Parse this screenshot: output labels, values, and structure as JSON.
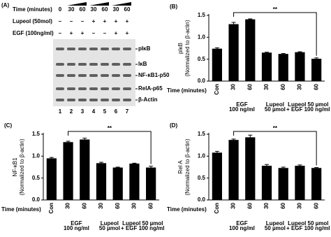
{
  "panel_a": {
    "label": "(A)",
    "rows": [
      {
        "name": "Time (minutes)",
        "values": [
          "0",
          "30",
          "60",
          "30",
          "60",
          "30",
          "60"
        ]
      },
      {
        "name": "Lupeol (50mol)",
        "values": [
          "–",
          "–",
          "–",
          "+",
          "+",
          "+",
          "+"
        ]
      },
      {
        "name": "EGF (100ng/ml)",
        "values": [
          "–",
          "+",
          "+",
          "–",
          "–",
          "+",
          "+"
        ]
      }
    ],
    "bands": [
      "pIκB",
      "IκB",
      "NF-κB1-p50",
      "RelA-p65",
      "β-Actin"
    ],
    "lanes": [
      1,
      2,
      3,
      4,
      5,
      6,
      7
    ]
  },
  "chart_data": [
    {
      "type": "bar",
      "panel_label": "(B)",
      "ylabel": "pIκB",
      "ylabel_note": "(Normalized to β-actin)",
      "xlabel": "Time (minutes)",
      "categories": [
        "Con",
        "30",
        "60",
        "30",
        "60",
        "30",
        "60"
      ],
      "group_labels": [
        [
          "EGF",
          "100 ng/ml"
        ],
        [
          "Lupeol",
          "50 µmol"
        ],
        [
          "Lupeol 50 µmol",
          "+ EGF 100 ng/ml"
        ]
      ],
      "values": [
        0.74,
        1.3,
        1.41,
        0.65,
        0.62,
        0.66,
        0.51
      ],
      "errors": [
        0.02,
        0.04,
        0.01,
        0.01,
        0.01,
        0.01,
        0.02
      ],
      "color": "#000000",
      "ylim": [
        0,
        1.5
      ],
      "yticks": [
        {
          "value": 0,
          "label": "0.0"
        },
        0.5,
        {
          "value": 1,
          "label": "1.0"
        },
        1.5
      ],
      "annotation": "**"
    },
    {
      "type": "bar",
      "panel_label": "(C)",
      "ylabel": "NF-κB1",
      "ylabel_note": "(Normalized to β-actin)",
      "xlabel": "Time (minutes)",
      "categories": [
        "Con",
        "30",
        "60",
        "30",
        "60",
        "30",
        "60"
      ],
      "group_labels": [
        [
          "EGF",
          "100 ng/ml"
        ],
        [
          "Lupeol",
          "50 µmol"
        ],
        [
          "Lupeol 50 µmol",
          "+ EGF 100 ng/ml"
        ]
      ],
      "values": [
        0.95,
        1.32,
        1.38,
        0.84,
        0.74,
        0.83,
        0.74
      ],
      "errors": [
        0.02,
        0.02,
        0.03,
        0.02,
        0.01,
        0.01,
        0.03
      ],
      "color": "#000000",
      "ylim": [
        0,
        1.5
      ],
      "yticks": [
        {
          "value": 0,
          "label": "0.0"
        },
        0.5,
        {
          "value": 1,
          "label": "1.0"
        },
        1.5
      ],
      "annotation": "**"
    },
    {
      "type": "bar",
      "panel_label": "(D)",
      "ylabel": "Rel A",
      "ylabel_note": "(Normalized to β-actin)",
      "xlabel": "Time (minutes)",
      "categories": [
        "Con",
        "30",
        "60",
        "30",
        "60",
        "30",
        "60"
      ],
      "group_labels": [
        [
          "EGF",
          "100 ng/ml"
        ],
        [
          "Lupeol",
          "50 µmol"
        ],
        [
          "Lupeol 50 µmol",
          "+ EGF 100 ng/ml"
        ]
      ],
      "values": [
        1.08,
        1.37,
        1.43,
        0.78,
        0.73,
        0.78,
        0.73
      ],
      "errors": [
        0.03,
        0.02,
        0.05,
        0.03,
        0.02,
        0.02,
        0.01
      ],
      "color": "#000000",
      "ylim": [
        0,
        1.5
      ],
      "yticks": [
        {
          "value": 0,
          "label": "0.0"
        },
        0.5,
        {
          "value": 1,
          "label": "1.0"
        },
        1.5
      ],
      "annotation": "**"
    }
  ]
}
